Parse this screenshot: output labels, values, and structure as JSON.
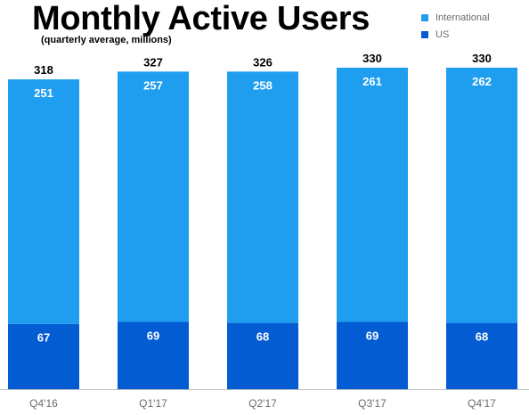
{
  "colors": {
    "international": "#1f9ef0",
    "us": "#045cd2",
    "axis": "#bdbdbd"
  },
  "chart_data": {
    "type": "bar",
    "stacked": true,
    "title": "Monthly Active Users",
    "subtitle": "(quarterly average, millions)",
    "categories": [
      "Q4'16",
      "Q1'17",
      "Q2'17",
      "Q3'17",
      "Q4'17"
    ],
    "series": [
      {
        "name": "US",
        "values": [
          67,
          69,
          68,
          69,
          68
        ]
      },
      {
        "name": "International",
        "values": [
          251,
          257,
          258,
          261,
          262
        ]
      }
    ],
    "totals": [
      318,
      327,
      326,
      330,
      330
    ],
    "legend": {
      "position": "top-right",
      "order": [
        "International",
        "US"
      ]
    },
    "grid": false,
    "ylim": [
      0,
      330
    ]
  }
}
